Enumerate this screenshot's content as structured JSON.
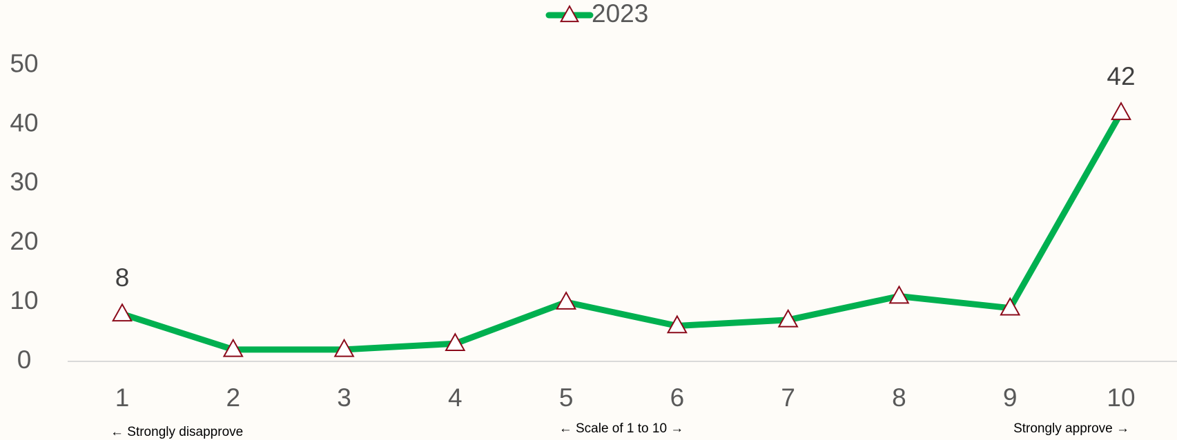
{
  "chart_data": {
    "type": "line",
    "categories": [
      "1",
      "2",
      "3",
      "4",
      "5",
      "6",
      "7",
      "8",
      "9",
      "10"
    ],
    "series": [
      {
        "name": "2023",
        "color": "#00b050",
        "marker_color": "#8b0a1a",
        "values": [
          8,
          2,
          2,
          3,
          10,
          6,
          7,
          11,
          9,
          42
        ],
        "value_labels": [
          "8",
          null,
          null,
          null,
          null,
          null,
          null,
          null,
          null,
          "42"
        ]
      }
    ],
    "ylim": [
      0,
      50
    ],
    "yticks": [
      0,
      10,
      20,
      30,
      40,
      50
    ],
    "grid": false,
    "legend": "top",
    "annotations": [
      "← Strongly disapprove",
      "← Scale of 1 to 10 →",
      "Strongly approve →"
    ]
  }
}
